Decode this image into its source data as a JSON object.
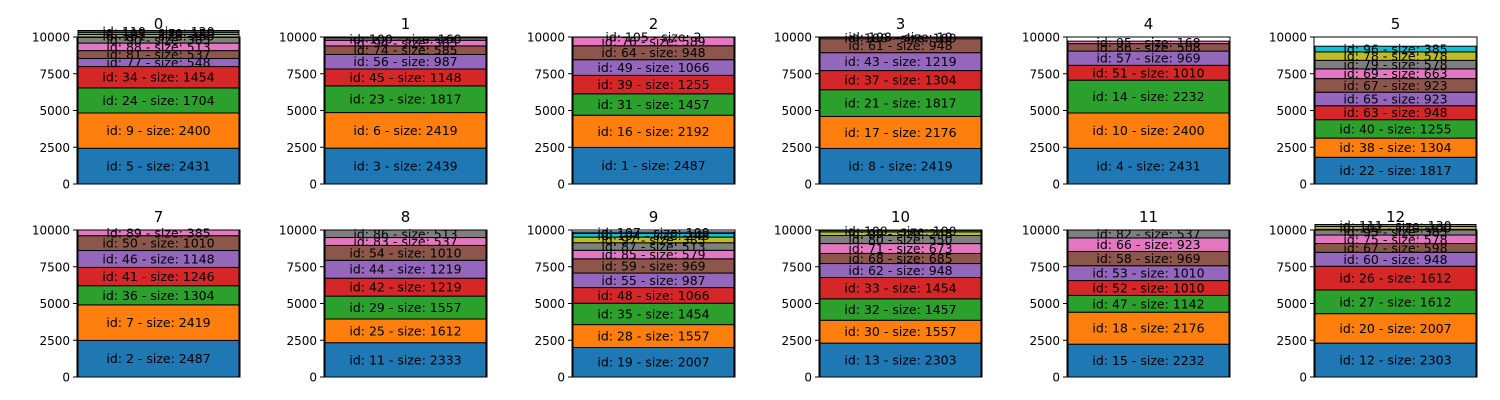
{
  "chart_data": {
    "type": "stacked-bar",
    "ylim": [
      0,
      10000
    ],
    "yticks": [
      "0",
      "2500",
      "5000",
      "7500",
      "10000"
    ],
    "palette": [
      "#1f77b4",
      "#ff7f0e",
      "#2ca02c",
      "#d62728",
      "#9467bd",
      "#8c564b",
      "#e377c2",
      "#7f7f7f",
      "#bcbd22",
      "#17becf"
    ],
    "label_format": "id: {id} - size: {size}",
    "panels": [
      {
        "title": "0",
        "blocks": [
          {
            "id": 5,
            "size": 2431
          },
          {
            "id": 9,
            "size": 2400
          },
          {
            "id": 24,
            "size": 1704
          },
          {
            "id": 34,
            "size": 1454
          },
          {
            "id": 77,
            "size": 548
          },
          {
            "id": 81,
            "size": 537
          },
          {
            "id": 88,
            "size": 513
          },
          {
            "id": 90,
            "size": 385
          },
          {
            "id": 101,
            "size": 200
          },
          {
            "id": 103,
            "size": 150
          },
          {
            "id": 110,
            "size": 120
          }
        ]
      },
      {
        "title": "1",
        "blocks": [
          {
            "id": 3,
            "size": 2439
          },
          {
            "id": 6,
            "size": 2419
          },
          {
            "id": 23,
            "size": 1817
          },
          {
            "id": 45,
            "size": 1148
          },
          {
            "id": 56,
            "size": 987
          },
          {
            "id": 74,
            "size": 585
          },
          {
            "id": 94,
            "size": 385
          },
          {
            "id": 100,
            "size": 160
          }
        ]
      },
      {
        "title": "2",
        "blocks": [
          {
            "id": 1,
            "size": 2487
          },
          {
            "id": 16,
            "size": 2192
          },
          {
            "id": 31,
            "size": 1457
          },
          {
            "id": 39,
            "size": 1255
          },
          {
            "id": 49,
            "size": 1066
          },
          {
            "id": 64,
            "size": 948
          },
          {
            "id": 76,
            "size": 589
          },
          {
            "id": 105,
            "size": 2
          }
        ]
      },
      {
        "title": "3",
        "blocks": [
          {
            "id": 8,
            "size": 2419
          },
          {
            "id": 17,
            "size": 2176
          },
          {
            "id": 21,
            "size": 1817
          },
          {
            "id": 37,
            "size": 1304
          },
          {
            "id": 43,
            "size": 1219
          },
          {
            "id": 61,
            "size": 948
          },
          {
            "id": 106,
            "size": 100
          },
          {
            "id": 108,
            "size": 10
          }
        ]
      },
      {
        "title": "4",
        "blocks": [
          {
            "id": 4,
            "size": 2431
          },
          {
            "id": 10,
            "size": 2400
          },
          {
            "id": 14,
            "size": 2232
          },
          {
            "id": 51,
            "size": 1010
          },
          {
            "id": 57,
            "size": 969
          },
          {
            "id": 86,
            "size": 508
          },
          {
            "id": 95,
            "size": 168
          }
        ]
      },
      {
        "title": "5",
        "blocks": [
          {
            "id": 22,
            "size": 1817
          },
          {
            "id": 38,
            "size": 1304
          },
          {
            "id": 40,
            "size": 1255
          },
          {
            "id": 63,
            "size": 948
          },
          {
            "id": 65,
            "size": 923
          },
          {
            "id": 67,
            "size": 923
          },
          {
            "id": 69,
            "size": 663
          },
          {
            "id": 79,
            "size": 578
          },
          {
            "id": 78,
            "size": 578
          },
          {
            "id": 96,
            "size": 385
          }
        ]
      },
      {
        "title": "7",
        "blocks": [
          {
            "id": 2,
            "size": 2487
          },
          {
            "id": 7,
            "size": 2419
          },
          {
            "id": 36,
            "size": 1304
          },
          {
            "id": 41,
            "size": 1246
          },
          {
            "id": 46,
            "size": 1148
          },
          {
            "id": 50,
            "size": 1010
          },
          {
            "id": 89,
            "size": 385
          }
        ]
      },
      {
        "title": "8",
        "blocks": [
          {
            "id": 11,
            "size": 2333
          },
          {
            "id": 25,
            "size": 1612
          },
          {
            "id": 29,
            "size": 1557
          },
          {
            "id": 42,
            "size": 1219
          },
          {
            "id": 44,
            "size": 1219
          },
          {
            "id": 54,
            "size": 1010
          },
          {
            "id": 83,
            "size": 537
          },
          {
            "id": 86,
            "size": 513
          }
        ]
      },
      {
        "title": "9",
        "blocks": [
          {
            "id": 19,
            "size": 2007
          },
          {
            "id": 28,
            "size": 1557
          },
          {
            "id": 35,
            "size": 1454
          },
          {
            "id": 48,
            "size": 1066
          },
          {
            "id": 55,
            "size": 987
          },
          {
            "id": 59,
            "size": 969
          },
          {
            "id": 85,
            "size": 579
          },
          {
            "id": 87,
            "size": 513
          },
          {
            "id": 97,
            "size": 385
          },
          {
            "id": 104,
            "size": 248
          },
          {
            "id": 107,
            "size": 100
          }
        ]
      },
      {
        "title": "10",
        "blocks": [
          {
            "id": 13,
            "size": 2303
          },
          {
            "id": 30,
            "size": 1557
          },
          {
            "id": 32,
            "size": 1457
          },
          {
            "id": 33,
            "size": 1454
          },
          {
            "id": 62,
            "size": 948
          },
          {
            "id": 68,
            "size": 685
          },
          {
            "id": 71,
            "size": 673
          },
          {
            "id": 80,
            "size": 550
          },
          {
            "id": 99,
            "size": 248
          },
          {
            "id": 109,
            "size": 100
          }
        ]
      },
      {
        "title": "11",
        "blocks": [
          {
            "id": 15,
            "size": 2232
          },
          {
            "id": 18,
            "size": 2176
          },
          {
            "id": 47,
            "size": 1142
          },
          {
            "id": 52,
            "size": 1010
          },
          {
            "id": 53,
            "size": 1010
          },
          {
            "id": 58,
            "size": 969
          },
          {
            "id": 66,
            "size": 923
          },
          {
            "id": 82,
            "size": 537
          }
        ]
      },
      {
        "title": "12",
        "blocks": [
          {
            "id": 12,
            "size": 2303
          },
          {
            "id": 20,
            "size": 2007
          },
          {
            "id": 27,
            "size": 1612
          },
          {
            "id": 26,
            "size": 1612
          },
          {
            "id": 60,
            "size": 948
          },
          {
            "id": 67,
            "size": 598
          },
          {
            "id": 75,
            "size": 578
          },
          {
            "id": 93,
            "size": 385
          },
          {
            "id": 102,
            "size": 200
          },
          {
            "id": 111,
            "size": 130
          }
        ]
      }
    ]
  }
}
